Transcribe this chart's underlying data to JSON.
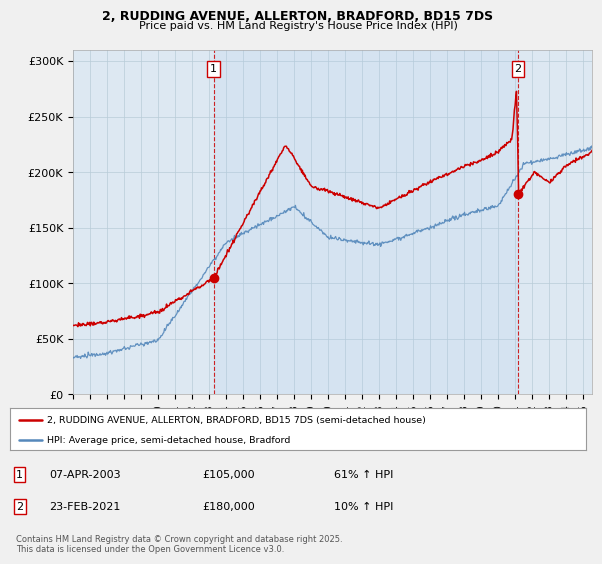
{
  "title_line1": "2, RUDDING AVENUE, ALLERTON, BRADFORD, BD15 7DS",
  "title_line2": "Price paid vs. HM Land Registry's House Price Index (HPI)",
  "xlim_start": 1995.0,
  "xlim_end": 2025.5,
  "ylim_bottom": 0,
  "ylim_top": 310000,
  "yticks": [
    0,
    50000,
    100000,
    150000,
    200000,
    250000,
    300000
  ],
  "ytick_labels": [
    "£0",
    "£50K",
    "£100K",
    "£150K",
    "£200K",
    "£250K",
    "£300K"
  ],
  "xticks": [
    1995,
    1996,
    1997,
    1998,
    1999,
    2000,
    2001,
    2002,
    2003,
    2004,
    2005,
    2006,
    2007,
    2008,
    2009,
    2010,
    2011,
    2012,
    2013,
    2014,
    2015,
    2016,
    2017,
    2018,
    2019,
    2020,
    2021,
    2022,
    2023,
    2024,
    2025
  ],
  "sale1_x": 2003.27,
  "sale1_y": 105000,
  "sale1_label": "1",
  "sale2_x": 2021.15,
  "sale2_y": 180000,
  "sale2_label": "2",
  "red_line_color": "#cc0000",
  "blue_line_color": "#5588bb",
  "vline_color": "#cc0000",
  "marker_color": "#cc0000",
  "plot_bg_color": "#dde8f0",
  "legend_label_red": "2, RUDDING AVENUE, ALLERTON, BRADFORD, BD15 7DS (semi-detached house)",
  "legend_label_blue": "HPI: Average price, semi-detached house, Bradford",
  "annotation1_date": "07-APR-2003",
  "annotation1_price": "£105,000",
  "annotation1_hpi": "61% ↑ HPI",
  "annotation2_date": "23-FEB-2021",
  "annotation2_price": "£180,000",
  "annotation2_hpi": "10% ↑ HPI",
  "footer": "Contains HM Land Registry data © Crown copyright and database right 2025.\nThis data is licensed under the Open Government Licence v3.0.",
  "bg_color": "#f0f0f0",
  "fig_bg_color": "#f0f0f0"
}
